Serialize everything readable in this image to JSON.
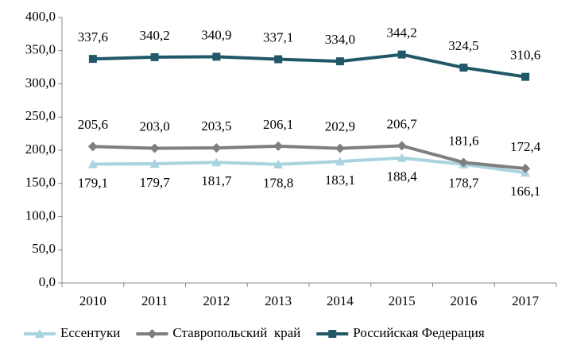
{
  "chart_data": {
    "type": "line",
    "categories": [
      "2010",
      "2011",
      "2012",
      "2013",
      "2014",
      "2015",
      "2016",
      "2017"
    ],
    "series": [
      {
        "name": "Ессентуки",
        "color": "#a9d3df",
        "marker": "triangle",
        "values": [
          179.1,
          179.7,
          181.7,
          178.8,
          183.1,
          188.4,
          178.7,
          166.1
        ],
        "value_labels": [
          "179,1",
          "179,7",
          "181,7",
          "178,8",
          "183,1",
          "188,4",
          "178,7",
          "166,1"
        ]
      },
      {
        "name": "Ставропольский  край",
        "color": "#7f7f7f",
        "marker": "diamond",
        "values": [
          205.6,
          203.0,
          203.5,
          206.1,
          202.9,
          206.7,
          181.6,
          172.4
        ],
        "value_labels": [
          "205,6",
          "203,0",
          "203,5",
          "206,1",
          "202,9",
          "206,7",
          "181,6",
          "172,4"
        ]
      },
      {
        "name": "Российская Федерация",
        "color": "#215868",
        "marker": "square",
        "values": [
          337.6,
          340.2,
          340.9,
          337.1,
          334.0,
          344.2,
          324.5,
          310.6
        ],
        "value_labels": [
          "337,6",
          "340,2",
          "340,9",
          "337,1",
          "334,0",
          "344,2",
          "324,5",
          "310,6"
        ]
      }
    ],
    "ylim": [
      0,
      400
    ],
    "yticks": [
      {
        "value": 0,
        "label": "0,0"
      },
      {
        "value": 50,
        "label": "50,0"
      },
      {
        "value": 100,
        "label": "100,0"
      },
      {
        "value": 150,
        "label": "150,0"
      },
      {
        "value": 200,
        "label": "200,0"
      },
      {
        "value": 250,
        "label": "250,0"
      },
      {
        "value": 300,
        "label": "300,0"
      },
      {
        "value": 350,
        "label": "350,0"
      },
      {
        "value": 400,
        "label": "400,0"
      }
    ],
    "grid": false,
    "legend": "bottom"
  }
}
